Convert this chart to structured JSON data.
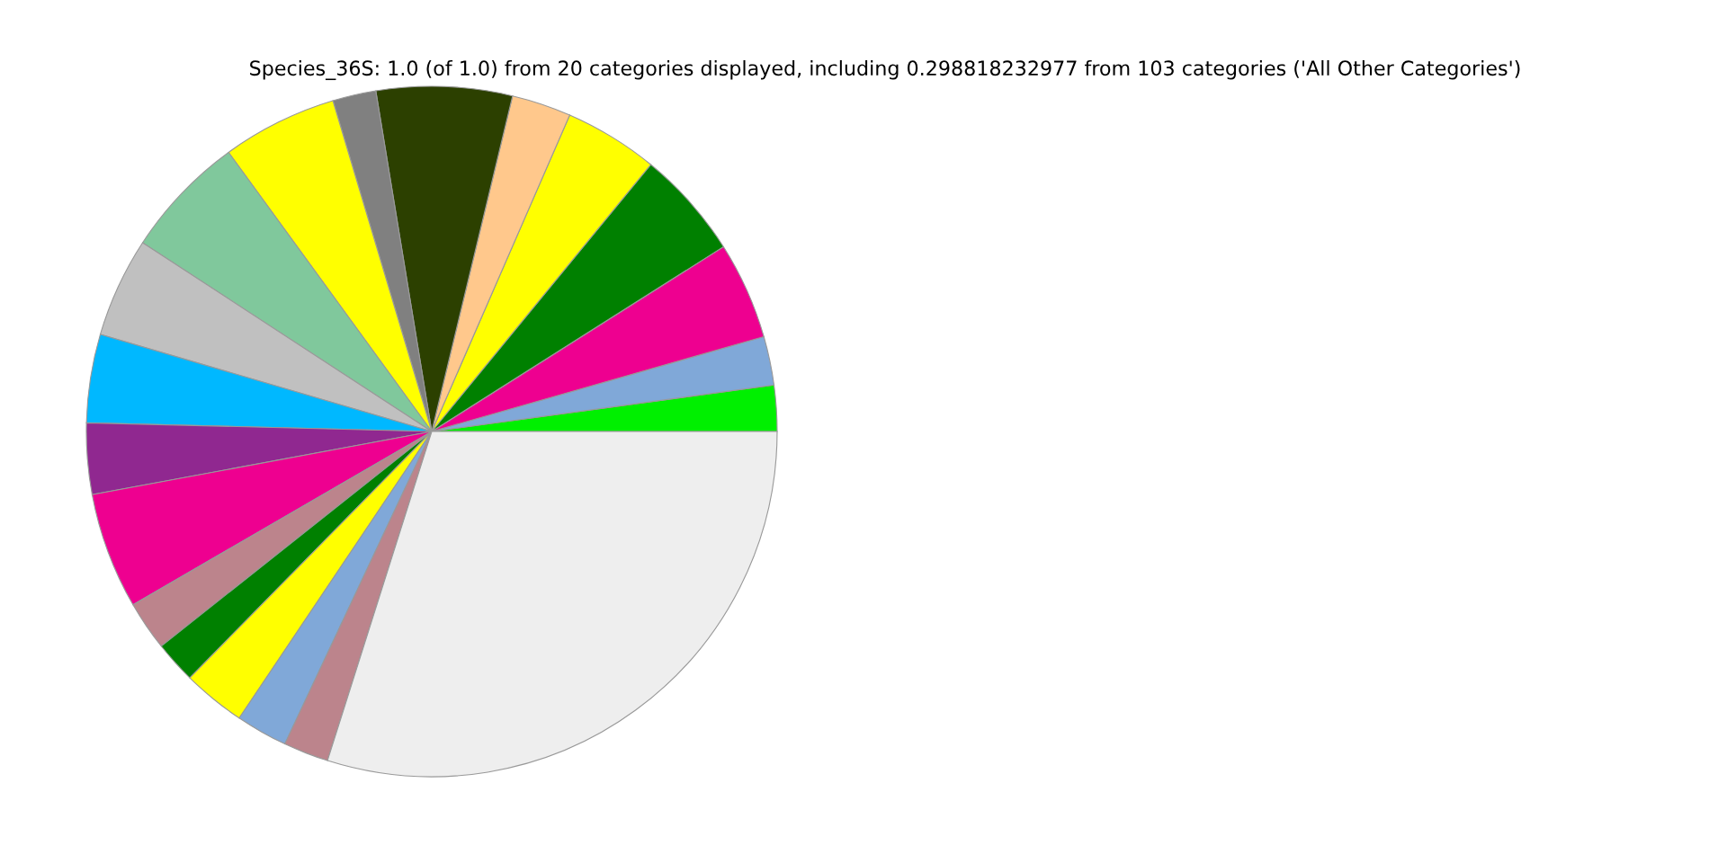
{
  "chart_data": {
    "type": "pie",
    "title": "Species_36S: 1.0 (of 1.0) from 20 categories displayed, including 0.298818232977 from 103 categories ('All Other Categories')",
    "categories": [
      null,
      null,
      null,
      null,
      null,
      null,
      null,
      null,
      null,
      null,
      null,
      null,
      null,
      null,
      null,
      null,
      null,
      null,
      null,
      null
    ],
    "values": [
      2.15,
      2.28,
      4.56,
      5.08,
      4.39,
      2.78,
      6.35,
      2.03,
      5.39,
      5.78,
      4.67,
      4.14,
      3.33,
      5.44,
      2.31,
      1.97,
      2.94,
      2.42,
      2.11,
      29.88
    ],
    "colors": [
      "#00f000",
      "#80a8d8",
      "#ee0090",
      "#008000",
      "#ffff00",
      "#ffc88c",
      "#2c4000",
      "#808080",
      "#ffff00",
      "#80c89c",
      "#c0c0c0",
      "#00b8ff",
      "#902890",
      "#ee0090",
      "#bc848c",
      "#008000",
      "#ffff00",
      "#80a8d8",
      "#bc848c",
      "#eeeeee"
    ]
  }
}
